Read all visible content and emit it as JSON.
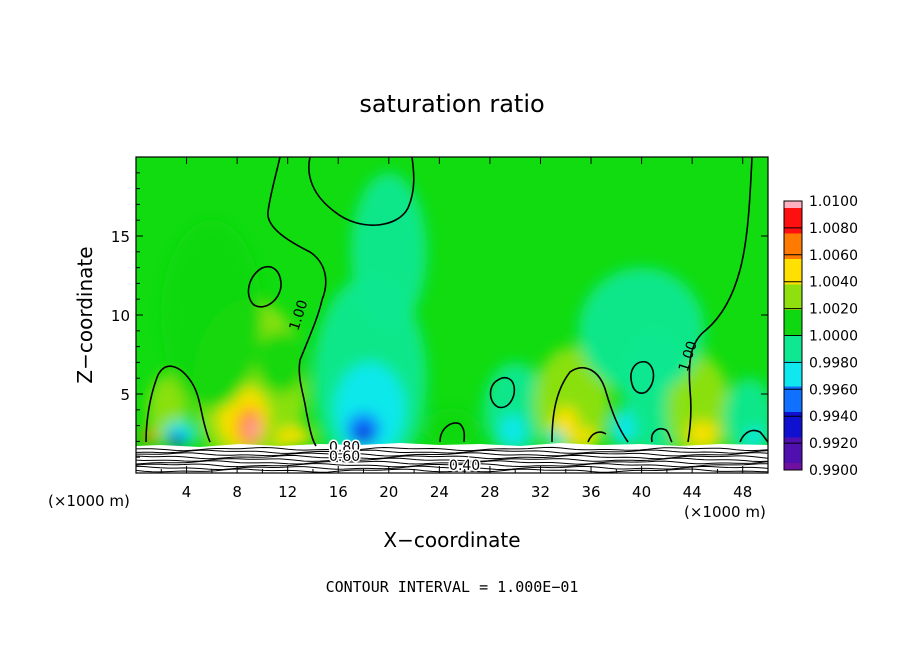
{
  "chart_data": {
    "type": "heatmap",
    "title": "saturation ratio",
    "xlabel": "X−coordinate",
    "ylabel": "Z−coordinate",
    "x_unit_label_left": "(×1000 m)",
    "x_unit_label_right": "(×1000 m)",
    "xlim": [
      0,
      50
    ],
    "ylim": [
      0,
      20
    ],
    "x_ticks": [
      4,
      8,
      12,
      16,
      20,
      24,
      28,
      32,
      36,
      40,
      44,
      48
    ],
    "y_ticks": [
      5,
      10,
      15
    ],
    "colorbar": {
      "levels": [
        "1.0100",
        "1.0080",
        "1.0060",
        "1.0040",
        "1.0020",
        "1.0000",
        "0.9980",
        "0.9960",
        "0.9940",
        "0.9920",
        "0.9900"
      ],
      "colors": [
        "#ff5a6e",
        "#ff1010",
        "#ff7a00",
        "#ffe000",
        "#90e010",
        "#10d810",
        "#10e890",
        "#10e8f0",
        "#1070ff",
        "#1010d0",
        "#5010b0"
      ],
      "top_color": "#ffb0c0",
      "bottom_color": "#7010a0"
    },
    "background_color": "#10dc10",
    "contour_labels": [
      {
        "text": "1.00",
        "x": 13.2,
        "y": 9.9
      },
      {
        "text": "1.00",
        "x": 44.0,
        "y": 7.3
      },
      {
        "text": "0.80",
        "x": 16.5,
        "y": 1.35
      },
      {
        "text": "0.60",
        "x": 16.5,
        "y": 0.75
      },
      {
        "text": "0.40",
        "x": 26.0,
        "y": 0.2
      }
    ],
    "blobs": [
      {
        "x": 2.5,
        "z": 4.0,
        "rx": 1.6,
        "rz": 2.2,
        "value": 1.002
      },
      {
        "x": 9.0,
        "z": 5.5,
        "rx": 4.5,
        "rz": 5.5,
        "value": 1.003
      },
      {
        "x": 8.5,
        "z": 3.5,
        "rx": 2.0,
        "rz": 2.0,
        "value": 1.0045
      },
      {
        "x": 9.0,
        "z": 2.9,
        "rx": 1.0,
        "rz": 1.2,
        "value": 1.0065
      },
      {
        "x": 9.2,
        "z": 2.8,
        "rx": 0.4,
        "rz": 0.7,
        "value": 1.01
      },
      {
        "x": 12.5,
        "z": 2.3,
        "rx": 1.5,
        "rz": 0.6,
        "value": 1.004
      },
      {
        "x": 1.0,
        "z": 2.3,
        "rx": 0.6,
        "rz": 0.4,
        "value": 1.007
      },
      {
        "x": 11.5,
        "z": 7.0,
        "rx": 2.0,
        "rz": 2.0,
        "value": 1.0018
      },
      {
        "x": 18.5,
        "z": 6.0,
        "rx": 4.5,
        "rz": 6.5,
        "value": 0.9985
      },
      {
        "x": 18.5,
        "z": 4.0,
        "rx": 2.8,
        "rz": 3.0,
        "value": 0.9965
      },
      {
        "x": 18.0,
        "z": 2.8,
        "rx": 1.3,
        "rz": 1.0,
        "value": 0.994
      },
      {
        "x": 18.0,
        "z": 2.3,
        "rx": 0.8,
        "rz": 0.5,
        "value": 0.9925
      },
      {
        "x": 3.5,
        "z": 2.5,
        "rx": 1.3,
        "rz": 0.8,
        "value": 0.996
      },
      {
        "x": 3.2,
        "z": 2.1,
        "rx": 0.7,
        "rz": 0.4,
        "value": 0.993
      },
      {
        "x": 20.0,
        "z": 14.0,
        "rx": 3.0,
        "rz": 5.0,
        "value": 0.9992
      },
      {
        "x": 30.0,
        "z": 4.0,
        "rx": 2.5,
        "rz": 3.0,
        "value": 0.9985
      },
      {
        "x": 29.8,
        "z": 2.7,
        "rx": 1.0,
        "rz": 1.0,
        "value": 0.9965
      },
      {
        "x": 25.0,
        "z": 2.8,
        "rx": 2.0,
        "rz": 1.3,
        "value": 1.0015
      },
      {
        "x": 34.5,
        "z": 4.5,
        "rx": 3.0,
        "rz": 3.5,
        "value": 1.0025
      },
      {
        "x": 34.0,
        "z": 3.2,
        "rx": 1.0,
        "rz": 1.0,
        "value": 1.0045
      },
      {
        "x": 35.5,
        "z": 2.3,
        "rx": 1.2,
        "rz": 0.5,
        "value": 1.0055
      },
      {
        "x": 33.2,
        "z": 2.2,
        "rx": 0.7,
        "rz": 0.5,
        "value": 0.996
      },
      {
        "x": 41.0,
        "z": 5.0,
        "rx": 2.5,
        "rz": 4.0,
        "value": 0.9985
      },
      {
        "x": 38.5,
        "z": 2.8,
        "rx": 1.0,
        "rz": 1.2,
        "value": 0.9962
      },
      {
        "x": 44.5,
        "z": 4.0,
        "rx": 2.5,
        "rz": 3.5,
        "value": 1.0022
      },
      {
        "x": 44.8,
        "z": 2.5,
        "rx": 1.2,
        "rz": 0.8,
        "value": 1.005
      },
      {
        "x": 48.5,
        "z": 3.5,
        "rx": 2.0,
        "rz": 2.5,
        "value": 0.9985
      },
      {
        "x": 49.0,
        "z": 2.3,
        "rx": 0.8,
        "rz": 0.5,
        "value": 0.996
      },
      {
        "x": 6.0,
        "z": 10.0,
        "rx": 4.0,
        "rz": 6.0,
        "value": 1.0012
      },
      {
        "x": 40.0,
        "z": 9.0,
        "rx": 5.0,
        "rz": 4.0,
        "value": 0.9994
      }
    ]
  },
  "footer": {
    "contour_interval": "CONTOUR INTERVAL = 1.000E−01"
  }
}
